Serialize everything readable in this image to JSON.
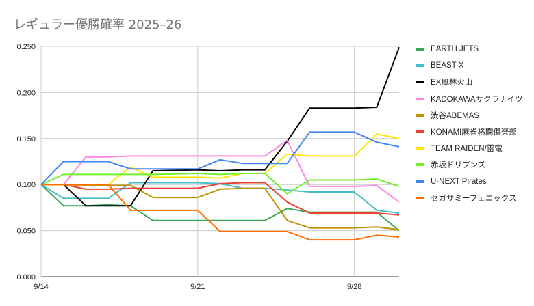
{
  "chart_data": {
    "type": "line",
    "title": "レギュラー優勝確率 2025–26",
    "x": [
      "9/14",
      "9/15",
      "9/16",
      "9/17",
      "9/18",
      "9/19",
      "9/21",
      "9/22",
      "9/23",
      "9/24",
      "9/25",
      "9/26",
      "9/28",
      "9/29",
      "9/30"
    ],
    "x_ticks": [
      "9/14",
      "9/21",
      "9/28"
    ],
    "x_range": [
      "9/14",
      "9/30"
    ],
    "y_ticks": [
      "0.000",
      "0.050",
      "0.100",
      "0.150",
      "0.200",
      "0.250"
    ],
    "ylim": [
      0,
      0.25
    ],
    "grid": true,
    "legend_position": "right",
    "series": [
      {
        "name": "EARTH JETS",
        "color": "#34a853",
        "values": [
          0.1,
          0.077,
          0.077,
          0.078,
          0.077,
          0.061,
          0.061,
          0.061,
          0.061,
          0.061,
          0.074,
          0.07,
          0.07,
          0.07,
          0.05
        ]
      },
      {
        "name": "BEAST X",
        "color": "#46bdc6",
        "values": [
          0.1,
          0.085,
          0.085,
          0.085,
          0.102,
          0.102,
          0.102,
          0.101,
          0.096,
          0.096,
          0.094,
          0.092,
          0.092,
          0.072,
          0.069
        ]
      },
      {
        "name": "EX風林火山",
        "color": "#000000",
        "values": [
          0.1,
          0.1,
          0.077,
          0.077,
          0.077,
          0.115,
          0.116,
          0.115,
          0.116,
          0.116,
          0.147,
          0.183,
          0.183,
          0.184,
          0.249
        ]
      },
      {
        "name": "KADOKAWAサクラナイツ",
        "color": "#ff85e0",
        "values": [
          0.1,
          0.1,
          0.13,
          0.13,
          0.131,
          0.131,
          0.131,
          0.131,
          0.131,
          0.131,
          0.148,
          0.098,
          0.098,
          0.099,
          0.081
        ]
      },
      {
        "name": "渋谷ABEMAS",
        "color": "#bf9000",
        "values": [
          0.1,
          0.1,
          0.099,
          0.099,
          0.099,
          0.086,
          0.086,
          0.095,
          0.096,
          0.096,
          0.061,
          0.053,
          0.053,
          0.054,
          0.051
        ]
      },
      {
        "name": "KONAMI麻雀格闘倶楽部",
        "color": "#ea4335",
        "values": [
          0.1,
          0.1,
          0.095,
          0.095,
          0.096,
          0.096,
          0.096,
          0.101,
          0.102,
          0.102,
          0.081,
          0.069,
          0.069,
          0.069,
          0.067
        ]
      },
      {
        "name": "TEAM RAIDEN/雷電",
        "color": "#ffe500",
        "values": [
          0.1,
          0.1,
          0.1,
          0.1,
          0.119,
          0.108,
          0.108,
          0.107,
          0.112,
          0.112,
          0.133,
          0.131,
          0.131,
          0.155,
          0.15
        ]
      },
      {
        "name": "赤坂ドリブンズ",
        "color": "#72ee2a",
        "values": [
          0.1,
          0.111,
          0.111,
          0.111,
          0.111,
          0.111,
          0.112,
          0.111,
          0.112,
          0.112,
          0.09,
          0.105,
          0.105,
          0.106,
          0.098
        ]
      },
      {
        "name": "U-NEXT Pirates",
        "color": "#4285f4",
        "values": [
          0.1,
          0.125,
          0.125,
          0.125,
          0.117,
          0.117,
          0.117,
          0.127,
          0.123,
          0.123,
          0.123,
          0.157,
          0.157,
          0.146,
          0.141
        ]
      },
      {
        "name": "セガサミーフェニックス",
        "color": "#ff6d01",
        "values": [
          0.1,
          0.1,
          0.1,
          0.1,
          0.072,
          0.072,
          0.072,
          0.049,
          0.049,
          0.049,
          0.049,
          0.04,
          0.04,
          0.045,
          0.043
        ]
      }
    ]
  }
}
